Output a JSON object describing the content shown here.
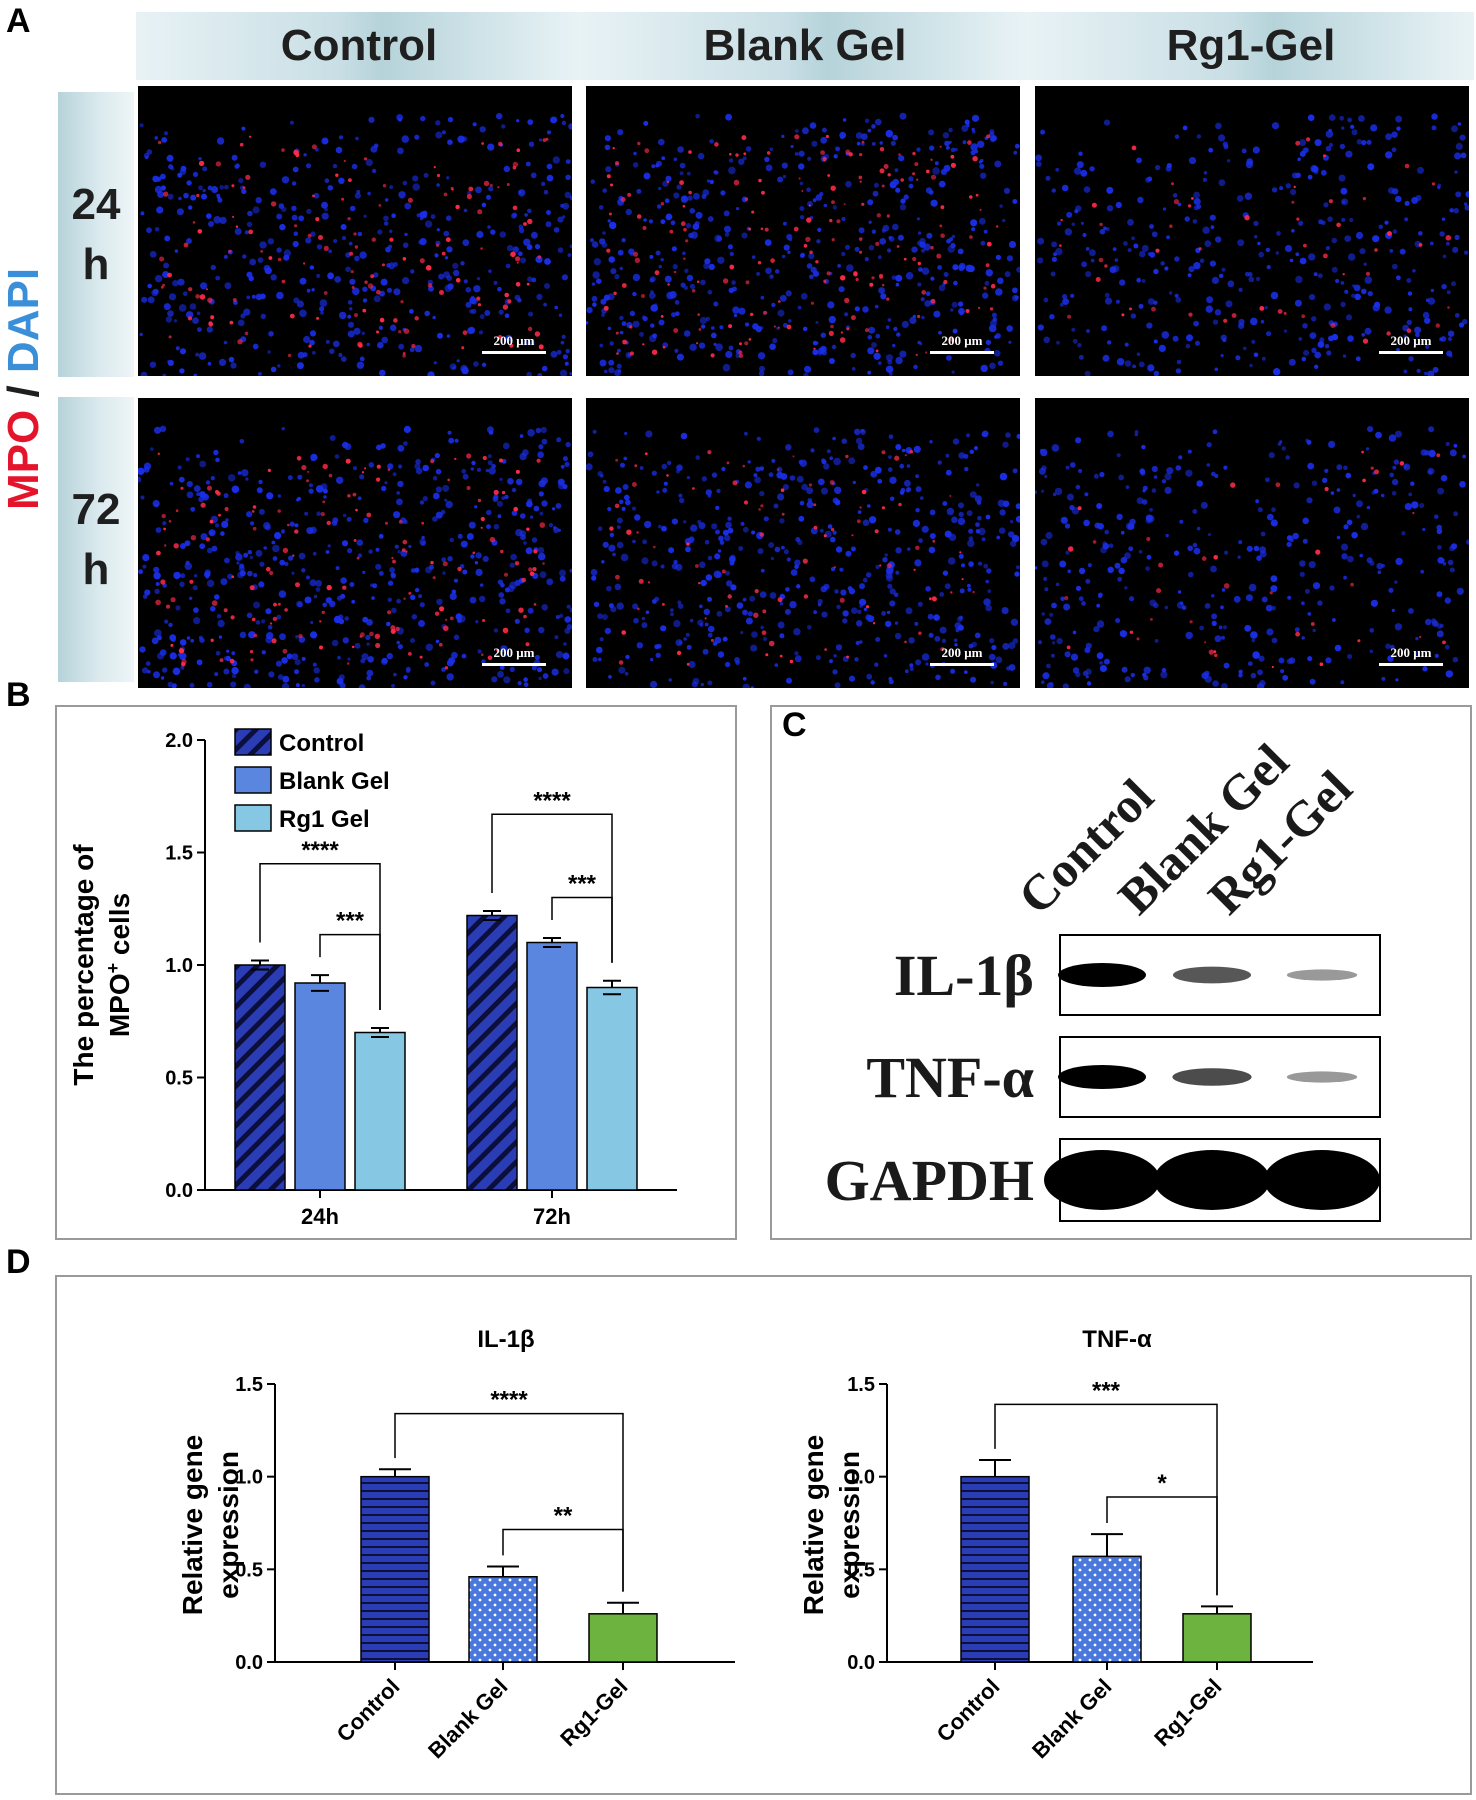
{
  "panels": {
    "a": "A",
    "b": "B",
    "c": "C",
    "d": "D"
  },
  "panel_a": {
    "columns": [
      "Control",
      "Blank Gel",
      "Rg1-Gel"
    ],
    "rows": [
      {
        "line1": "24",
        "line2": "h"
      },
      {
        "line1": "72",
        "line2": "h"
      }
    ],
    "stain_mpo": "MPO",
    "stain_sep": " / ",
    "stain_dapi": "DAPI",
    "scale_bar": "200 μm",
    "colors": {
      "mpo": "#e4142b",
      "dapi": "#3a8fd8",
      "nuclei": "#1a2ee8",
      "signal": "#ff2a4a"
    }
  },
  "chart_data": [
    {
      "type": "bar",
      "panel": "B",
      "ylabel_line1": "The percentage of",
      "ylabel_line2": "MPO",
      "ylabel_sup": "+",
      "ylabel_line2_rest": " cells",
      "categories": [
        "24h",
        "72h"
      ],
      "ylim": [
        0,
        2.0
      ],
      "yticks": [
        "0.0",
        "0.5",
        "1.0",
        "1.5",
        "2.0"
      ],
      "series": [
        {
          "name": "Control",
          "values": [
            1.0,
            1.22
          ],
          "errors": [
            0.02,
            0.02
          ],
          "color": "#2b3db5",
          "pattern": "diagonal-hatch"
        },
        {
          "name": "Blank Gel",
          "values": [
            0.92,
            1.1
          ],
          "errors": [
            0.035,
            0.02
          ],
          "color": "#5b86df",
          "pattern": "solid"
        },
        {
          "name": "Rg1 Gel",
          "values": [
            0.7,
            0.9
          ],
          "errors": [
            0.02,
            0.03
          ],
          "color": "#86c7e3",
          "pattern": "solid"
        }
      ],
      "significance": [
        {
          "group": "24h",
          "from": "Control",
          "to": "Rg1 Gel",
          "label": "****"
        },
        {
          "group": "24h",
          "from": "Blank Gel",
          "to": "Rg1 Gel",
          "label": "***"
        },
        {
          "group": "72h",
          "from": "Control",
          "to": "Rg1 Gel",
          "label": "****"
        },
        {
          "group": "72h",
          "from": "Blank Gel",
          "to": "Rg1 Gel",
          "label": "***"
        }
      ],
      "legend": "top-left"
    },
    {
      "type": "bar",
      "panel": "D",
      "title": "IL-1β",
      "ylabel_line1": "Relative gene",
      "ylabel_line2": "expression",
      "categories": [
        "Control",
        "Blank Gel",
        "Rg1-Gel"
      ],
      "values": [
        1.0,
        0.46,
        0.26
      ],
      "errors": [
        0.04,
        0.055,
        0.06
      ],
      "colors": [
        "#2b3db5",
        "#4a78dc",
        "#6db33f"
      ],
      "patterns": [
        "horizontal-lines",
        "dots",
        "solid"
      ],
      "ylim": [
        0,
        1.5
      ],
      "yticks": [
        "0.0",
        "0.5",
        "1.0",
        "1.5"
      ],
      "significance": [
        {
          "from": "Control",
          "to": "Rg1-Gel",
          "label": "****"
        },
        {
          "from": "Blank Gel",
          "to": "Rg1-Gel",
          "label": "**"
        }
      ]
    },
    {
      "type": "bar",
      "panel": "D",
      "title": "TNF-α",
      "ylabel_line1": "Relative gene",
      "ylabel_line2": "expression",
      "categories": [
        "Control",
        "Blank Gel",
        "Rg1-Gel"
      ],
      "values": [
        1.0,
        0.57,
        0.26
      ],
      "errors": [
        0.09,
        0.12,
        0.04
      ],
      "colors": [
        "#2b3db5",
        "#4a78dc",
        "#6db33f"
      ],
      "patterns": [
        "horizontal-lines",
        "dots",
        "solid"
      ],
      "ylim": [
        0,
        1.5
      ],
      "yticks": [
        "0.0",
        "0.5",
        "1.0",
        "1.5"
      ],
      "significance": [
        {
          "from": "Control",
          "to": "Rg1-Gel",
          "label": "***"
        },
        {
          "from": "Blank Gel",
          "to": "Rg1-Gel",
          "label": "*"
        }
      ]
    }
  ],
  "panel_c": {
    "lanes": [
      "Control",
      "Blank Gel",
      "Rg1-Gel"
    ],
    "proteins": [
      {
        "name": "IL-1β",
        "intensities": [
          1.0,
          0.55,
          0.2
        ]
      },
      {
        "name": "TNF-α",
        "intensities": [
          1.0,
          0.6,
          0.2
        ]
      },
      {
        "name": "GAPDH",
        "intensities": [
          1.0,
          1.0,
          1.0
        ]
      }
    ]
  }
}
